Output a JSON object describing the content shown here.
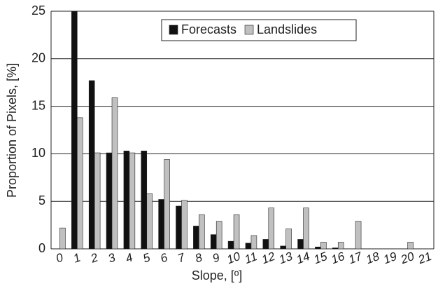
{
  "chart_data": {
    "type": "bar",
    "x_label": "Slope, [º]",
    "y_label": "Proportion of Pixels, [%]",
    "categories": [
      "0",
      "1",
      "2",
      "3",
      "4",
      "5",
      "6",
      "7",
      "8",
      "9",
      "10",
      "11",
      "12",
      "13",
      "14",
      "15",
      "16",
      "17",
      "18",
      "19",
      "20",
      "21"
    ],
    "series": [
      {
        "name": "Forecasts",
        "color": "#111111",
        "values": [
          0,
          25,
          17.7,
          10.1,
          10.3,
          10.3,
          5.2,
          4.5,
          2.4,
          1.5,
          0.8,
          0.6,
          1.0,
          0.3,
          1.0,
          0.2,
          0.1,
          0,
          0,
          0,
          0,
          0
        ]
      },
      {
        "name": "Landslides",
        "color": "#c0c0c0",
        "values": [
          2.2,
          13.8,
          10.1,
          15.9,
          10.1,
          5.8,
          9.4,
          5.1,
          3.6,
          2.9,
          3.6,
          1.4,
          4.3,
          2.1,
          4.3,
          0.7,
          0.7,
          2.9,
          0,
          0,
          0.7,
          0
        ]
      }
    ],
    "ylim": [
      0,
      25
    ],
    "yticks": [
      0,
      5,
      10,
      15,
      20,
      25
    ],
    "grid": true,
    "legend": "top"
  }
}
